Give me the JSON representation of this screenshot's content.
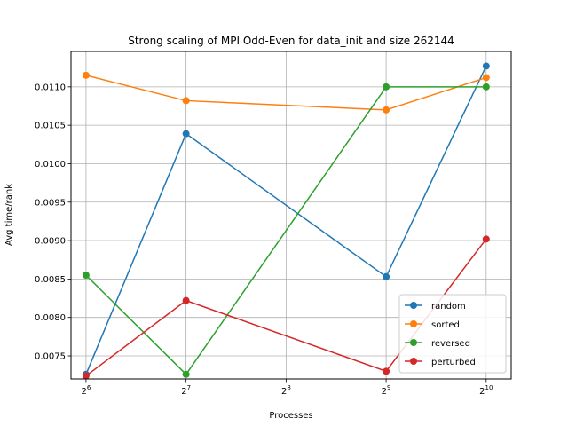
{
  "chart_data": {
    "type": "line",
    "title": "Strong scaling of MPI Odd-Even for data_init and size 262144",
    "xlabel": "Processes",
    "ylabel": "Avg time/rank",
    "x_scale": "log2",
    "x": [
      64,
      128,
      512,
      1024
    ],
    "x_ticks": [
      {
        "value": 64,
        "base": "2",
        "exp": "6"
      },
      {
        "value": 128,
        "base": "2",
        "exp": "7"
      },
      {
        "value": 256,
        "base": "2",
        "exp": "8"
      },
      {
        "value": 512,
        "base": "2",
        "exp": "9"
      },
      {
        "value": 1024,
        "base": "2",
        "exp": "10"
      }
    ],
    "y_ticks": [
      "0.0075",
      "0.0080",
      "0.0085",
      "0.0090",
      "0.0095",
      "0.0100",
      "0.0105",
      "0.0110"
    ],
    "ylim": [
      0.0072,
      0.01146
    ],
    "xlim_exp": [
      5.85,
      10.25
    ],
    "grid": true,
    "legend_position": "lower right",
    "series": [
      {
        "name": "random",
        "color": "#1f77b4",
        "values": [
          0.00726,
          0.01039,
          0.00853,
          0.01127
        ]
      },
      {
        "name": "sorted",
        "color": "#ff7f0e",
        "values": [
          0.01115,
          0.01082,
          0.0107,
          0.01112
        ]
      },
      {
        "name": "reversed",
        "color": "#2ca02c",
        "values": [
          0.00855,
          0.00726,
          0.011,
          0.011
        ]
      },
      {
        "name": "perturbed",
        "color": "#d62728",
        "values": [
          0.00724,
          0.00822,
          0.0073,
          0.00902
        ]
      }
    ]
  }
}
